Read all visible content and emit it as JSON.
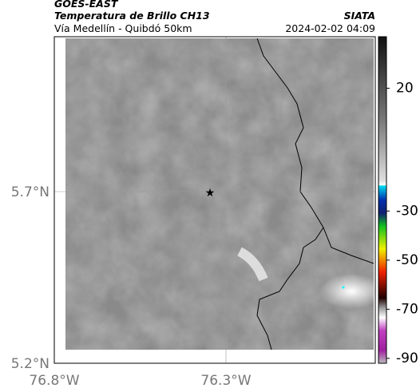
{
  "header": {
    "title": "GOES-EAST",
    "subtitle": "Temperatura de Brillo CH13",
    "location": "Vía Medellín - Quibdó 50km",
    "source": "SIATA",
    "timestamp": "2024-02-02 04:09"
  },
  "map": {
    "lat_labels": [
      "5.7°N",
      "5.2°N"
    ],
    "lon_labels": [
      "76.8°W",
      "76.3°W"
    ]
  },
  "colorbar": {
    "range": [
      41,
      -92
    ],
    "ticks": [
      20,
      -30,
      -50,
      -70,
      -90
    ]
  }
}
